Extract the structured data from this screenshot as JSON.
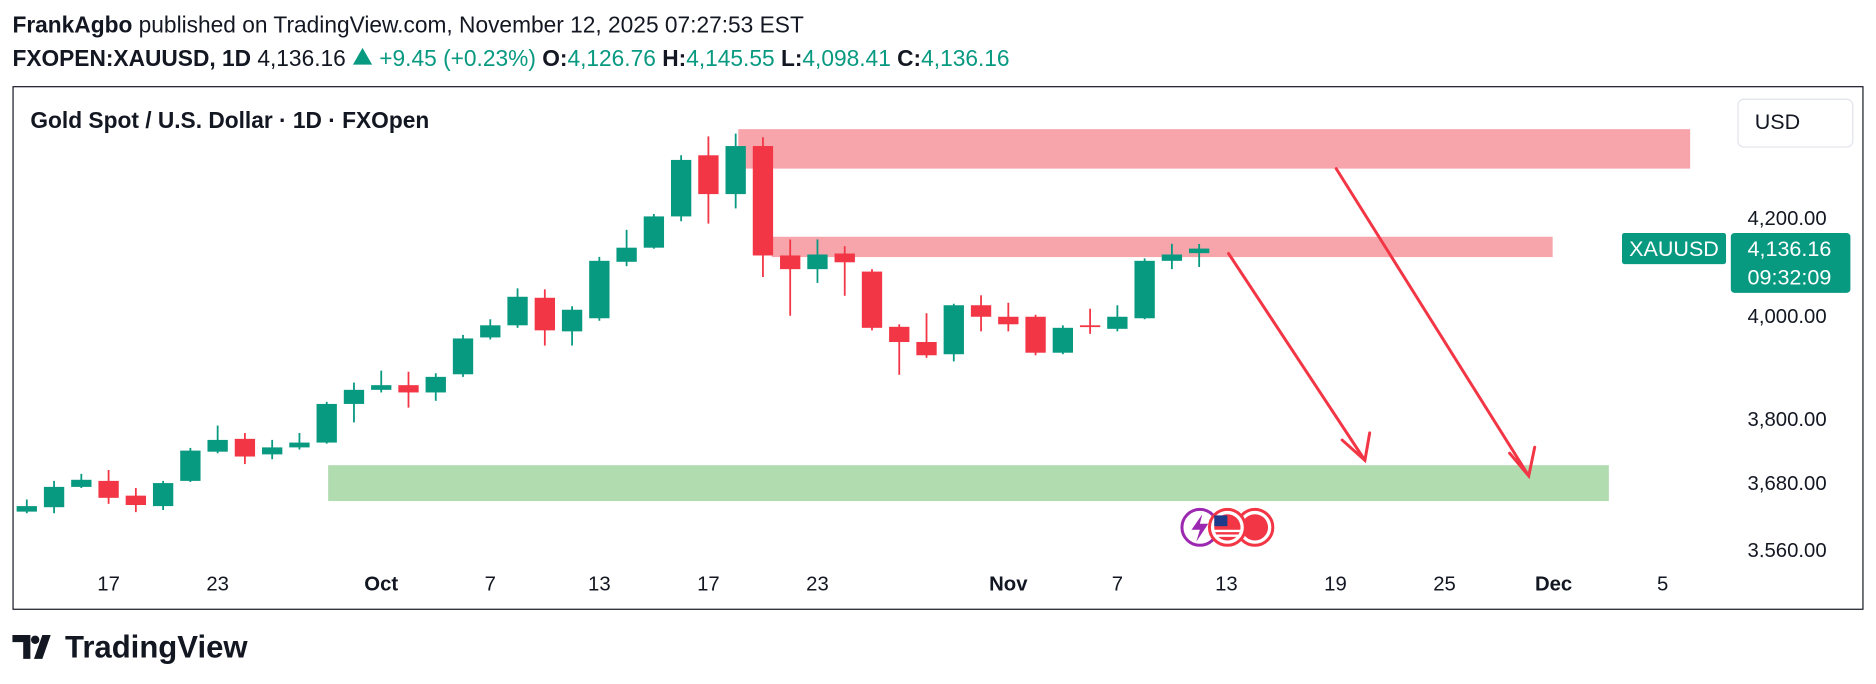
{
  "header": {
    "author": "FrankAgbo",
    "published": "published on TradingView.com, November 12, 2025 07:27:53 EST",
    "symbol": "FXOPEN:XAUUSD, 1D",
    "last": "4,136.16",
    "change": "+9.45 (+0.23%)",
    "o_label": "O:",
    "o": "4,126.76",
    "h_label": "H:",
    "h": "4,145.55",
    "l_label": "L:",
    "l": "4,098.41",
    "c_label": "C:",
    "c": "4,136.16",
    "brand": "TradingView"
  },
  "chart_data": {
    "type": "candlestick",
    "title": "Gold Spot / U.S. Dollar · 1D · FXOpen",
    "currency": "USD",
    "up_color": "#089981",
    "down_color": "#f23645",
    "log_scale": true,
    "grid": false,
    "categories": [
      null,
      null,
      null,
      "17",
      null,
      null,
      null,
      "23",
      null,
      null,
      null,
      null,
      null,
      "Oct",
      null,
      null,
      null,
      "7",
      null,
      null,
      null,
      "13",
      null,
      null,
      null,
      "17",
      null,
      null,
      null,
      "23",
      null,
      null,
      null,
      null,
      null,
      null,
      "Nov",
      null,
      null,
      null,
      "7",
      null,
      null,
      null,
      "13",
      null,
      null,
      null,
      "19",
      null,
      null,
      null,
      "25",
      null,
      null,
      null,
      "Dec",
      null,
      null,
      null,
      "5"
    ],
    "open": [
      3628,
      3636,
      3673,
      3684,
      3657,
      3638,
      3684,
      3738,
      3762,
      3733,
      3746,
      3755,
      3828,
      3855,
      3864,
      3850,
      3885,
      3957,
      3981,
      4036,
      3969,
      3995,
      4109,
      4138,
      4203,
      4333,
      4250,
      4353,
      4122,
      4094,
      4126,
      4089,
      3978,
      3948,
      3924,
      4021,
      3998,
      3998,
      3927,
      3981,
      3974,
      3995,
      4111,
      4126.76,
      null,
      null,
      null,
      null,
      null,
      null,
      null,
      null,
      null,
      null,
      null,
      null,
      null,
      null,
      null,
      null,
      null
    ],
    "high": [
      3650,
      3684,
      3697,
      3704,
      3671,
      3684,
      3745,
      3787,
      3773,
      3760,
      3773,
      3832,
      3869,
      3892,
      3890,
      3887,
      3962,
      3993,
      4055,
      4053,
      4019,
      4119,
      4175,
      4208,
      4333,
      4374,
      4380,
      4372,
      4155,
      4155,
      4141,
      4094,
      3983,
      4005,
      4024,
      4041,
      4026,
      4002,
      3981,
      4014,
      4021,
      4116,
      4146,
      4145.55,
      null,
      null,
      null,
      null,
      null,
      null,
      null,
      null,
      null,
      null,
      null,
      null,
      null,
      null,
      null,
      null,
      null
    ],
    "low": [
      3625,
      3625,
      3671,
      3642,
      3627,
      3631,
      3682,
      3735,
      3715,
      3724,
      3742,
      3753,
      3793,
      3850,
      3821,
      3834,
      3880,
      3953,
      3976,
      3941,
      3941,
      3990,
      4100,
      4136,
      4193,
      4188,
      4220,
      4078,
      4000,
      4066,
      4040,
      3971,
      3884,
      3917,
      3910,
      3969,
      3969,
      3922,
      3924,
      3964,
      3969,
      3993,
      4094,
      4098.41,
      null,
      null,
      null,
      null,
      null,
      null,
      null,
      null,
      null,
      null,
      null,
      null,
      null,
      null,
      null,
      null,
      null
    ],
    "close": [
      3638,
      3673,
      3686,
      3653,
      3640,
      3680,
      3740,
      3760,
      3729,
      3746,
      3755,
      3828,
      3855,
      3864,
      3850,
      3880,
      3955,
      3981,
      4038,
      3971,
      4012,
      4111,
      4138,
      4203,
      4323,
      4250,
      4353,
      4122,
      4094,
      4124,
      4108,
      3976,
      3948,
      3922,
      4021,
      3998,
      3983,
      3927,
      3976,
      3978,
      3998,
      4111,
      4124,
      4136.16,
      null,
      null,
      null,
      null,
      null,
      null,
      null,
      null,
      null,
      null,
      null,
      null,
      null,
      null,
      null,
      null,
      null
    ],
    "ylim": [
      3538,
      4477
    ],
    "yticks": [
      {
        "value": 4200,
        "label": "4,200.00"
      },
      {
        "value": 4000,
        "label": "4,000.00"
      },
      {
        "value": 3800,
        "label": "3,800.00"
      },
      {
        "value": 3680,
        "label": "3,680.00"
      },
      {
        "value": 3560,
        "label": "3,560.00"
      }
    ],
    "price_tag": {
      "symbol": "XAUUSD",
      "value": 4136.16,
      "label": "4,136.16",
      "countdown": "09:32:09"
    }
  }
}
